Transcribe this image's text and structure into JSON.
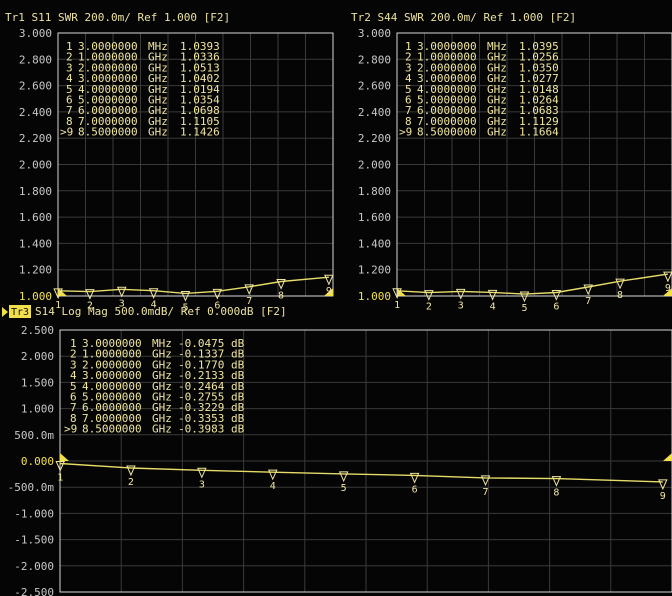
{
  "colors": {
    "background": "#050505",
    "grid": "#3a3a3a",
    "frame": "#d8d8d8",
    "trace": "#e6dc6a",
    "header_text": "#ece2a0",
    "axis_text": "#c8c8c8",
    "ref_text": "#f2e04a",
    "marker_text": "#f0e6a0"
  },
  "icons": {
    "reference_arrow": "ref-triangle-icon",
    "marker": "marker-triangle-icon"
  },
  "traces": [
    {
      "id": "tr1",
      "title": "Tr1 S11 SWR 200.0m/ Ref 1.000 [F2]",
      "ylim": [
        1.0,
        3.0
      ],
      "ticks": [
        "3.000",
        "2.800",
        "2.600",
        "2.400",
        "2.200",
        "2.000",
        "1.800",
        "1.600",
        "1.400",
        "1.200",
        "1.000"
      ],
      "ref_tick_index": 10,
      "markers": [
        {
          "num": "1",
          "freq": "3.0000000",
          "unit": "MHz",
          "value": "1.0393"
        },
        {
          "num": "2",
          "freq": "1.0000000",
          "unit": "GHz",
          "value": "1.0336"
        },
        {
          "num": "3",
          "freq": "2.0000000",
          "unit": "GHz",
          "value": "1.0513"
        },
        {
          "num": "4",
          "freq": "3.0000000",
          "unit": "GHz",
          "value": "1.0402"
        },
        {
          "num": "5",
          "freq": "4.0000000",
          "unit": "GHz",
          "value": "1.0194"
        },
        {
          "num": "6",
          "freq": "5.0000000",
          "unit": "GHz",
          "value": "1.0354"
        },
        {
          "num": "7",
          "freq": "6.0000000",
          "unit": "GHz",
          "value": "1.0698"
        },
        {
          "num": "8",
          "freq": "7.0000000",
          "unit": "GHz",
          "value": "1.1105"
        },
        {
          "num": ">9",
          "freq": "8.5000000",
          "unit": "GHz",
          "value": "1.1426"
        }
      ],
      "chart_data": {
        "type": "line",
        "x": [
          0.003,
          1.0,
          2.0,
          3.0,
          4.0,
          5.0,
          6.0,
          7.0,
          8.5
        ],
        "y": [
          1.0393,
          1.0336,
          1.0513,
          1.0402,
          1.0194,
          1.0354,
          1.0698,
          1.1105,
          1.1426
        ]
      }
    },
    {
      "id": "tr2",
      "title": "Tr2 S44 SWR 200.0m/ Ref 1.000 [F2]",
      "ylim": [
        1.0,
        3.0
      ],
      "ticks": [
        "3.000",
        "2.800",
        "2.600",
        "2.400",
        "2.200",
        "2.000",
        "1.800",
        "1.600",
        "1.400",
        "1.200",
        "1.000"
      ],
      "ref_tick_index": 10,
      "markers": [
        {
          "num": "1",
          "freq": "3.0000000",
          "unit": "MHz",
          "value": "1.0395"
        },
        {
          "num": "2",
          "freq": "1.0000000",
          "unit": "GHz",
          "value": "1.0256"
        },
        {
          "num": "3",
          "freq": "2.0000000",
          "unit": "GHz",
          "value": "1.0350"
        },
        {
          "num": "4",
          "freq": "3.0000000",
          "unit": "GHz",
          "value": "1.0277"
        },
        {
          "num": "5",
          "freq": "4.0000000",
          "unit": "GHz",
          "value": "1.0148"
        },
        {
          "num": "6",
          "freq": "5.0000000",
          "unit": "GHz",
          "value": "1.0264"
        },
        {
          "num": "7",
          "freq": "6.0000000",
          "unit": "GHz",
          "value": "1.0683"
        },
        {
          "num": "8",
          "freq": "7.0000000",
          "unit": "GHz",
          "value": "1.1129"
        },
        {
          "num": ">9",
          "freq": "8.5000000",
          "unit": "GHz",
          "value": "1.1664"
        }
      ],
      "chart_data": {
        "type": "line",
        "x": [
          0.003,
          1.0,
          2.0,
          3.0,
          4.0,
          5.0,
          6.0,
          7.0,
          8.5
        ],
        "y": [
          1.0395,
          1.0256,
          1.035,
          1.0277,
          1.0148,
          1.0264,
          1.0683,
          1.1129,
          1.1664
        ]
      }
    },
    {
      "id": "tr3",
      "title_badge": "Tr3",
      "title": "S14 Log Mag 500.0mdB/ Ref 0.000dB [F2]",
      "ylim": [
        -2.5,
        2.5
      ],
      "ticks": [
        "2.500",
        "2.000",
        "1.500",
        "1.000",
        "500.0m",
        "0.000",
        "-500.0m",
        "-1.000",
        "-1.500",
        "-2.000",
        "-2.500"
      ],
      "ref_tick_index": 5,
      "markers": [
        {
          "num": "1",
          "freq": "3.0000000",
          "unit": "MHz",
          "value": "-0.0475 dB"
        },
        {
          "num": "2",
          "freq": "1.0000000",
          "unit": "GHz",
          "value": "-0.1337 dB"
        },
        {
          "num": "3",
          "freq": "2.0000000",
          "unit": "GHz",
          "value": "-0.1770 dB"
        },
        {
          "num": "4",
          "freq": "3.0000000",
          "unit": "GHz",
          "value": "-0.2133 dB"
        },
        {
          "num": "5",
          "freq": "4.0000000",
          "unit": "GHz",
          "value": "-0.2464 dB"
        },
        {
          "num": "6",
          "freq": "5.0000000",
          "unit": "GHz",
          "value": "-0.2755 dB"
        },
        {
          "num": "7",
          "freq": "6.0000000",
          "unit": "GHz",
          "value": "-0.3229 dB"
        },
        {
          "num": "8",
          "freq": "7.0000000",
          "unit": "GHz",
          "value": "-0.3353 dB"
        },
        {
          "num": ">9",
          "freq": "8.5000000",
          "unit": "GHz",
          "value": "-0.3983 dB"
        }
      ],
      "chart_data": {
        "type": "line",
        "x": [
          0.003,
          1.0,
          2.0,
          3.0,
          4.0,
          5.0,
          6.0,
          7.0,
          8.5
        ],
        "y": [
          -0.0475,
          -0.1337,
          -0.177,
          -0.2133,
          -0.2464,
          -0.2755,
          -0.3229,
          -0.3353,
          -0.3983
        ]
      }
    }
  ]
}
